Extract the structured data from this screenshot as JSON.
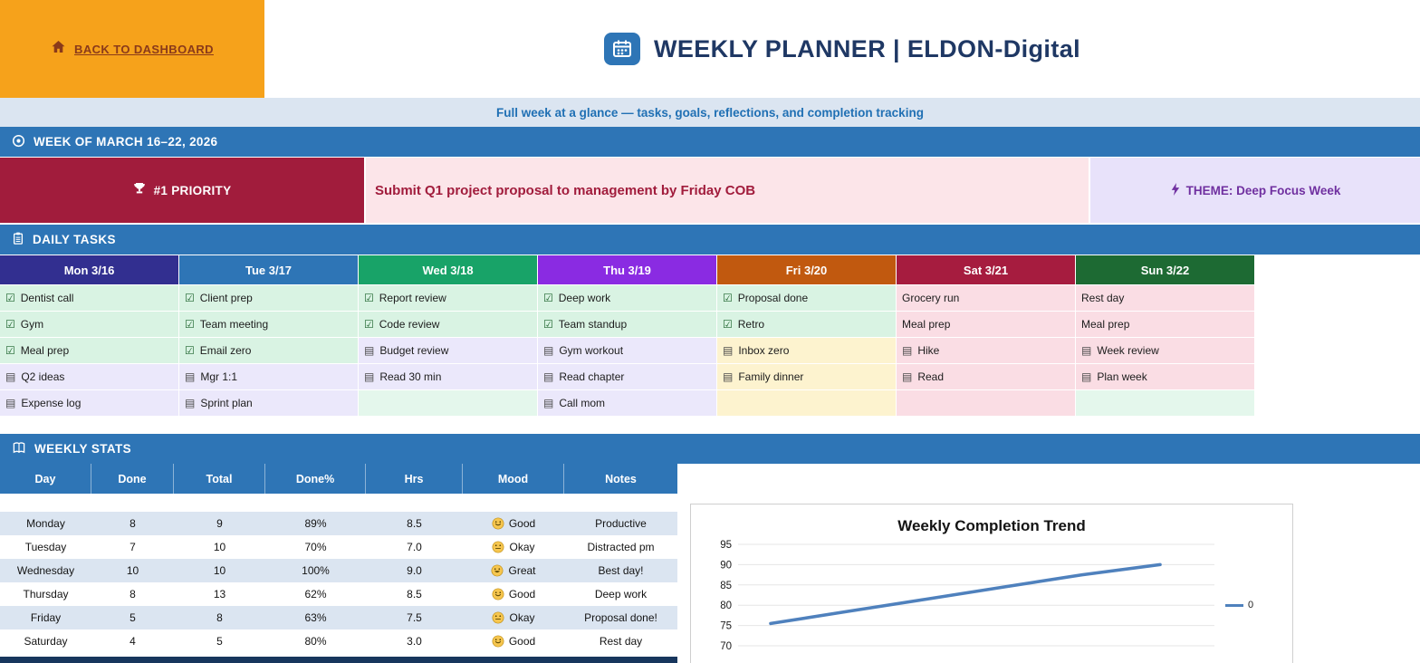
{
  "colors": {
    "orange": "#f6a21b",
    "title_navy": "#1f3864",
    "bar_blue": "#2e75b6",
    "crimson": "#a11c3c",
    "theme_purple": "#7030a0",
    "subtitle_bg": "#dbe5f1",
    "chart_line": "#4f81bd"
  },
  "back_button": {
    "label": "BACK TO DASHBOARD"
  },
  "header": {
    "title": "WEEKLY PLANNER  |  ELDON-Digital",
    "subtitle": "Full week at a glance — tasks, goals, reflections, and completion tracking"
  },
  "week": {
    "banner": "WEEK OF MARCH 16–22, 2026"
  },
  "priority": {
    "label": "#1 PRIORITY",
    "text": "Submit Q1 project proposal to management by Friday COB"
  },
  "theme": {
    "label": "THEME: Deep Focus Week"
  },
  "daily_tasks": {
    "section_title": "DAILY TASKS",
    "columns": [
      {
        "label": "Mon 3/16",
        "color": "#322f90",
        "cells": [
          {
            "text": "Dentist call",
            "check": "checked",
            "tone": "green"
          },
          {
            "text": "Gym",
            "check": "checked",
            "tone": "green"
          },
          {
            "text": "Meal prep",
            "check": "checked",
            "tone": "green"
          },
          {
            "text": "Q2 ideas",
            "check": "pending",
            "tone": "lavender"
          },
          {
            "text": "Expense log",
            "check": "pending",
            "tone": "lavender"
          }
        ]
      },
      {
        "label": "Tue 3/17",
        "color": "#2e75b6",
        "cells": [
          {
            "text": "Client prep",
            "check": "checked",
            "tone": "green"
          },
          {
            "text": "Team meeting",
            "check": "checked",
            "tone": "green"
          },
          {
            "text": "Email zero",
            "check": "checked",
            "tone": "green"
          },
          {
            "text": "Mgr 1:1",
            "check": "pending",
            "tone": "lavender"
          },
          {
            "text": "Sprint plan",
            "check": "pending",
            "tone": "lavender"
          }
        ]
      },
      {
        "label": "Wed 3/18",
        "color": "#18a368",
        "cells": [
          {
            "text": "Report review",
            "check": "checked",
            "tone": "green"
          },
          {
            "text": "Code review",
            "check": "checked",
            "tone": "green"
          },
          {
            "text": "Budget review",
            "check": "pending",
            "tone": "lavender"
          },
          {
            "text": "Read 30 min",
            "check": "pending",
            "tone": "lavender"
          },
          {
            "text": "",
            "check": "none",
            "tone": "mint"
          }
        ]
      },
      {
        "label": "Thu 3/19",
        "color": "#8a2be2",
        "cells": [
          {
            "text": "Deep work",
            "check": "checked",
            "tone": "green"
          },
          {
            "text": "Team standup",
            "check": "checked",
            "tone": "green"
          },
          {
            "text": "Gym workout",
            "check": "pending",
            "tone": "lavender"
          },
          {
            "text": "Read chapter",
            "check": "pending",
            "tone": "lavender"
          },
          {
            "text": "Call mom",
            "check": "pending",
            "tone": "lavender"
          }
        ]
      },
      {
        "label": "Fri 3/20",
        "color": "#c1590f",
        "cells": [
          {
            "text": "Proposal done",
            "check": "checked",
            "tone": "green"
          },
          {
            "text": "Retro",
            "check": "checked",
            "tone": "green"
          },
          {
            "text": "Inbox zero",
            "check": "pending",
            "tone": "yellow"
          },
          {
            "text": "Family dinner",
            "check": "pending",
            "tone": "yellow"
          },
          {
            "text": "",
            "check": "none",
            "tone": "yellow"
          }
        ]
      },
      {
        "label": "Sat 3/21",
        "color": "#a61c3f",
        "cells": [
          {
            "text": "Grocery run",
            "check": "none",
            "tone": "pink"
          },
          {
            "text": "Meal prep",
            "check": "none",
            "tone": "pink"
          },
          {
            "text": "Hike",
            "check": "pending",
            "tone": "pink"
          },
          {
            "text": "Read",
            "check": "pending",
            "tone": "pink"
          },
          {
            "text": "",
            "check": "none",
            "tone": "pink"
          }
        ]
      },
      {
        "label": "Sun 3/22",
        "color": "#1d6a33",
        "cells": [
          {
            "text": "Rest day",
            "check": "none",
            "tone": "pink"
          },
          {
            "text": "Meal prep",
            "check": "none",
            "tone": "pink"
          },
          {
            "text": "Week review",
            "check": "pending",
            "tone": "pink"
          },
          {
            "text": "Plan week",
            "check": "pending",
            "tone": "pink"
          },
          {
            "text": "",
            "check": "none",
            "tone": "mint"
          }
        ]
      }
    ]
  },
  "stats": {
    "section_title": "WEEKLY STATS",
    "headers": [
      "Day",
      "Done",
      "Total",
      "Done%",
      "Hrs",
      "Mood",
      "Notes"
    ],
    "rows": [
      {
        "day": "Monday",
        "done": "8",
        "total": "9",
        "pct": "89%",
        "hrs": "8.5",
        "mood": {
          "face": "smile",
          "label": "Good"
        },
        "notes": "Productive"
      },
      {
        "day": "Tuesday",
        "done": "7",
        "total": "10",
        "pct": "70%",
        "hrs": "7.0",
        "mood": {
          "face": "neutral",
          "label": "Okay"
        },
        "notes": "Distracted pm"
      },
      {
        "day": "Wednesday",
        "done": "10",
        "total": "10",
        "pct": "100%",
        "hrs": "9.0",
        "mood": {
          "face": "grin",
          "label": "Great"
        },
        "notes": "Best day!"
      },
      {
        "day": "Thursday",
        "done": "8",
        "total": "13",
        "pct": "62%",
        "hrs": "8.5",
        "mood": {
          "face": "smile",
          "label": "Good"
        },
        "notes": "Deep work"
      },
      {
        "day": "Friday",
        "done": "5",
        "total": "8",
        "pct": "63%",
        "hrs": "7.5",
        "mood": {
          "face": "neutral",
          "label": "Okay"
        },
        "notes": "Proposal done!"
      },
      {
        "day": "Saturday",
        "done": "4",
        "total": "5",
        "pct": "80%",
        "hrs": "3.0",
        "mood": {
          "face": "smile",
          "label": "Good"
        },
        "notes": "Rest day"
      }
    ]
  },
  "chart_data": {
    "type": "line",
    "title": "Weekly Completion Trend",
    "series": [
      {
        "name": "0",
        "values": [
          75.5,
          78.5,
          81.5,
          84.5,
          87.5,
          90
        ]
      }
    ],
    "ylim": [
      70,
      95
    ],
    "yticks": [
      95,
      90,
      85,
      80,
      75,
      70
    ],
    "grid": true,
    "legend_position": "right",
    "line_color": "#4f81bd",
    "x_labels_visible": false
  }
}
